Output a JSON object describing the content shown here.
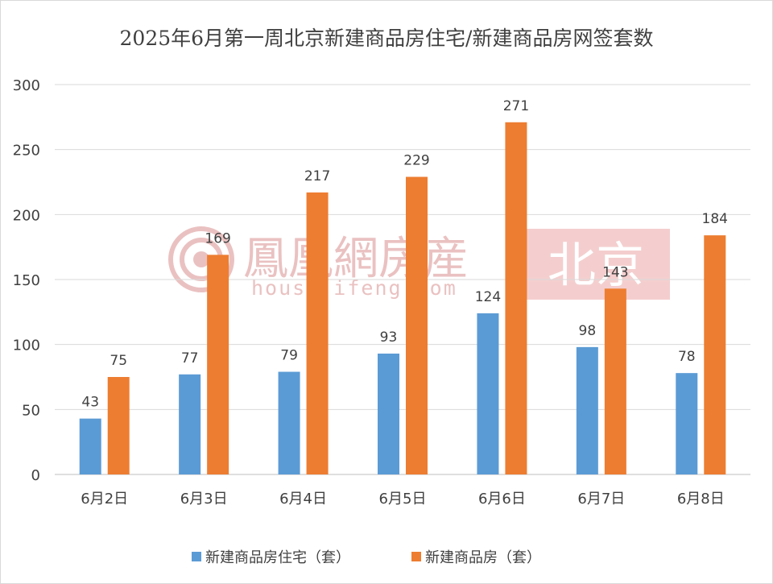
{
  "chart_data": {
    "type": "bar",
    "title": "2025年6月第一周北京新建商品房住宅/新建商品房网签套数",
    "categories": [
      "6月2日",
      "6月3日",
      "6月4日",
      "6月5日",
      "6月6日",
      "6月7日",
      "6月8日"
    ],
    "series": [
      {
        "name": "新建商品房住宅（套）",
        "color": "#5b9bd5",
        "values": [
          43,
          77,
          79,
          93,
          124,
          98,
          78
        ]
      },
      {
        "name": "新建商品房（套）",
        "color": "#ed7d31",
        "values": [
          75,
          169,
          217,
          229,
          271,
          143,
          184
        ]
      }
    ],
    "ylim": [
      0,
      300
    ],
    "yticks": [
      0,
      50,
      100,
      150,
      200,
      250,
      300
    ],
    "grid": true,
    "legend": "bottom"
  },
  "watermark": {
    "brand": "鳳凰網房産",
    "domain": "house.ifeng.com",
    "city": "北京",
    "color": "#e7b7b7",
    "city_bg": "#f3c6c6"
  }
}
